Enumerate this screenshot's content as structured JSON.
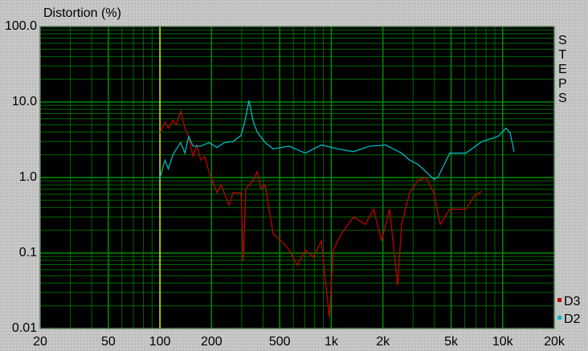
{
  "chart_data": {
    "type": "line",
    "title": "Distortion (%)",
    "side_label": "STEPS",
    "log_x": true,
    "log_y": true,
    "grid": true,
    "xlim": [
      20,
      20000
    ],
    "xticks": [
      20,
      50,
      100,
      200,
      500,
      {
        "value": 1000,
        "label": "1k"
      },
      {
        "value": 2000,
        "label": "2k"
      },
      {
        "value": 5000,
        "label": "5k"
      },
      {
        "value": 10000,
        "label": "10k"
      },
      {
        "value": 20000,
        "label": "20k"
      }
    ],
    "ylim": [
      0.01,
      100
    ],
    "yticks": [
      {
        "value": 100,
        "label": "100.0"
      },
      {
        "value": 10,
        "label": "10.0"
      },
      {
        "value": 1,
        "label": "1.0"
      },
      0.1,
      0.01
    ],
    "cursor_x": 100,
    "cursor_color": "#e0e000",
    "grid_color": "#008a00",
    "legend": "lower right",
    "series": [
      {
        "name": "D3",
        "color": "#c00000",
        "x": [
          100,
          107,
          112,
          119,
          125,
          132,
          140,
          147,
          156,
          164,
          173,
          183,
          193,
          215,
          227,
          253,
          267,
          297,
          307,
          317,
          349,
          369,
          389,
          411,
          457,
          509,
          568,
          632,
          705,
          785,
          875,
          974,
          1028,
          1146,
          1346,
          1582,
          1763,
          1964,
          2188,
          2438,
          2573,
          2864,
          3192,
          3557,
          3963,
          4317,
          4911,
          6095,
          6800,
          7570
        ],
        "values": [
          3.9,
          5.4,
          4.5,
          5.7,
          5.0,
          7.6,
          4.5,
          3.5,
          1.9,
          2.7,
          1.7,
          1.9,
          1.2,
          0.63,
          0.8,
          0.43,
          0.63,
          0.63,
          0.078,
          0.71,
          0.91,
          1.2,
          0.71,
          0.8,
          0.18,
          0.145,
          0.11,
          0.069,
          0.11,
          0.088,
          0.145,
          0.014,
          0.11,
          0.18,
          0.3,
          0.24,
          0.38,
          0.145,
          0.38,
          0.037,
          0.24,
          0.63,
          0.91,
          1.0,
          0.63,
          0.24,
          0.38,
          0.38,
          0.56,
          0.66
        ]
      },
      {
        "name": "D2",
        "color": "#00b8c0",
        "x": [
          100,
          107,
          112,
          119,
          125,
          132,
          140,
          147,
          156,
          173,
          193,
          215,
          239,
          267,
          297,
          313,
          331,
          349,
          369,
          411,
          457,
          568,
          705,
          875,
          1085,
          1346,
          1672,
          2075,
          2573,
          2864,
          3192,
          3557,
          3963,
          4180,
          4911,
          6095,
          7570,
          9400,
          10470,
          11050,
          11660
        ],
        "values": [
          0.98,
          1.7,
          1.3,
          2.0,
          2.4,
          2.9,
          2.1,
          3.5,
          2.6,
          2.6,
          2.9,
          2.5,
          2.9,
          3.0,
          3.6,
          5.5,
          10.5,
          5.7,
          4.0,
          2.9,
          2.4,
          2.6,
          2.1,
          2.7,
          2.4,
          2.2,
          2.6,
          2.7,
          2.1,
          1.7,
          1.5,
          1.2,
          0.95,
          1.0,
          2.1,
          2.1,
          3.0,
          3.5,
          4.5,
          3.9,
          2.2
        ]
      }
    ]
  }
}
